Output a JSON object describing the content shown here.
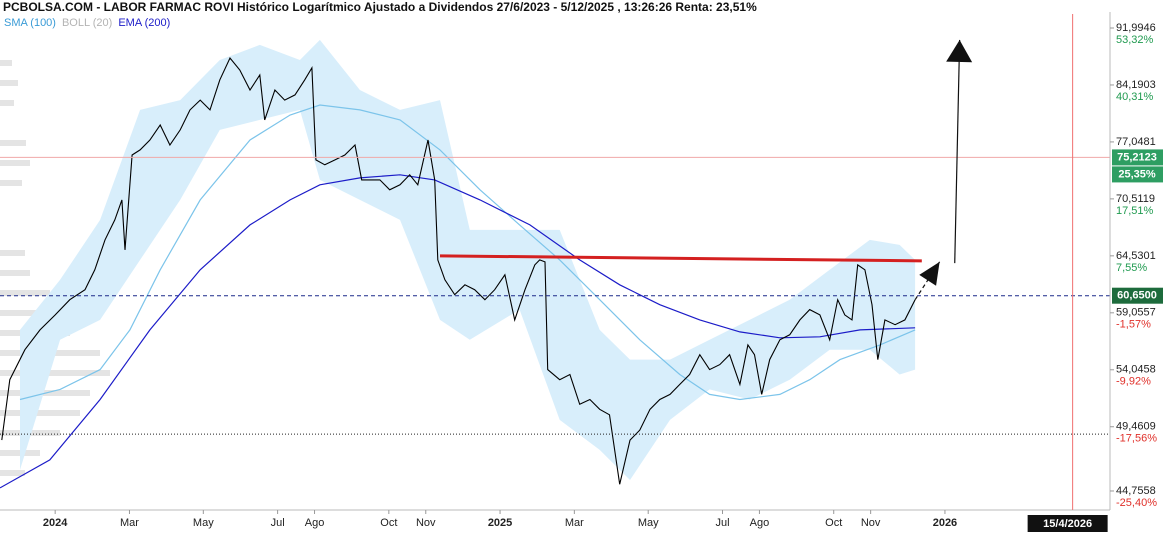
{
  "chart_data": {
    "type": "line",
    "log": true,
    "grid": false,
    "title": "PCBOLSA.COM - LABOR FARMAC ROVI Histórico Logarítmico Ajustado a Dividendos 27/6/2023 - 5/12/2025 , 13:26:26 Renta: 23,51%",
    "xlim": [
      2023.876,
      2026.371
    ],
    "ylim": [
      43.45,
      94.02
    ],
    "xticks": [
      {
        "value": 2024.0,
        "label": "2024"
      },
      {
        "value": 2024.167,
        "label": "Mar"
      },
      {
        "value": 2024.333,
        "label": "May"
      },
      {
        "value": 2024.5,
        "label": "Jul"
      },
      {
        "value": 2024.583,
        "label": "Ago"
      },
      {
        "value": 2024.75,
        "label": "Oct"
      },
      {
        "value": 2024.833,
        "label": "Nov"
      },
      {
        "value": 2025.0,
        "label": "2025"
      },
      {
        "value": 2025.167,
        "label": "Mar"
      },
      {
        "value": 2025.333,
        "label": "May"
      },
      {
        "value": 2025.5,
        "label": "Jul"
      },
      {
        "value": 2025.583,
        "label": "Ago"
      },
      {
        "value": 2025.75,
        "label": "Oct"
      },
      {
        "value": 2025.833,
        "label": "Nov"
      },
      {
        "value": 2026.0,
        "label": "2026"
      }
    ],
    "yticks": [
      {
        "value": 91.9946,
        "label": "91,9946"
      },
      {
        "value": 84.1903,
        "label": "84,1903"
      },
      {
        "value": 77.0481,
        "label": "77,0481"
      },
      {
        "value": 70.5119,
        "label": "70,5119"
      },
      {
        "value": 64.5301,
        "label": "64,5301"
      },
      {
        "value": 59.0557,
        "label": "59,0557"
      },
      {
        "value": 54.0458,
        "label": "54,0458"
      },
      {
        "value": 49.4609,
        "label": "49,4609"
      },
      {
        "value": 44.7558,
        "label": "44,7558"
      }
    ],
    "ytick_percent": [
      {
        "value": 91.9946,
        "label": "53,32%",
        "color": "#1f9a4f"
      },
      {
        "value": 84.1903,
        "label": "40,31%",
        "color": "#1f9a4f"
      },
      {
        "value": 70.5119,
        "label": "17,51%",
        "color": "#1f9a4f"
      },
      {
        "value": 64.5301,
        "label": "7,55%",
        "color": "#1f9a4f"
      },
      {
        "value": 59.0557,
        "label": "-1,57%",
        "color": "#e0302a"
      },
      {
        "value": 54.0458,
        "label": "-9,92%",
        "color": "#e0302a"
      },
      {
        "value": 49.4609,
        "label": "-17,56%",
        "color": "#e0302a"
      },
      {
        "value": 44.7558,
        "label": "-25,40%",
        "color": "#e0302a"
      }
    ],
    "price": {
      "color": "#000000",
      "x": [
        2023.88,
        2023.898,
        2023.932,
        2023.966,
        2024.0,
        2024.033,
        2024.067,
        2024.089,
        2024.112,
        2024.134,
        2024.15,
        2024.157,
        2024.173,
        2024.191,
        2024.213,
        2024.236,
        2024.258,
        2024.281,
        2024.303,
        2024.326,
        2024.348,
        2024.37,
        2024.393,
        2024.415,
        2024.438,
        2024.46,
        2024.471,
        2024.494,
        2024.516,
        2024.539,
        2024.561,
        2024.577,
        2024.586,
        2024.606,
        2024.629,
        2024.651,
        2024.674,
        2024.689,
        2024.712,
        2024.73,
        2024.752,
        2024.775,
        2024.797,
        2024.815,
        2024.838,
        2024.853,
        2024.86,
        2024.876,
        2024.898,
        2024.921,
        2024.943,
        2024.966,
        2024.988,
        2025.011,
        2025.033,
        2025.056,
        2025.078,
        2025.089,
        2025.101,
        2025.107,
        2025.134,
        2025.157,
        2025.179,
        2025.202,
        2025.224,
        2025.246,
        2025.269,
        2025.292,
        2025.314,
        2025.337,
        2025.359,
        2025.382,
        2025.404,
        2025.426,
        2025.449,
        2025.471,
        2025.494,
        2025.516,
        2025.539,
        2025.557,
        2025.572,
        2025.588,
        2025.606,
        2025.629,
        2025.651,
        2025.674,
        2025.696,
        2025.719,
        2025.741,
        2025.759,
        2025.775,
        2025.791,
        2025.804,
        2025.82,
        2025.836,
        2025.849,
        2025.865,
        2025.888,
        2025.91,
        2025.933
      ],
      "values": [
        48.44,
        53.22,
        55.76,
        57.51,
        58.86,
        60.27,
        61.22,
        63.14,
        66.15,
        68.24,
        70.4,
        65.13,
        75.5,
        76.1,
        77.28,
        79.11,
        76.68,
        78.5,
        80.98,
        82.23,
        80.98,
        84.85,
        87.8,
        86.17,
        83.53,
        85.51,
        79.74,
        83.53,
        82.23,
        82.9,
        84.85,
        86.45,
        74.92,
        74.35,
        74.92,
        75.5,
        76.68,
        72.63,
        72.63,
        72.63,
        71.52,
        72.07,
        73.2,
        72.07,
        77.28,
        72.63,
        64.12,
        62.17,
        60.74,
        61.69,
        61.22,
        60.27,
        61.22,
        62.65,
        58.41,
        61.22,
        63.63,
        64.12,
        63.93,
        54.06,
        53.22,
        53.65,
        51.22,
        51.6,
        50.82,
        50.39,
        45.22,
        48.44,
        49.2,
        50.82,
        51.6,
        52.01,
        52.83,
        53.65,
        55.33,
        54.06,
        54.48,
        55.33,
        52.83,
        56.18,
        55.33,
        52.01,
        54.91,
        56.63,
        57.07,
        58.41,
        59.35,
        58.86,
        56.63,
        60.27,
        58.86,
        58.41,
        63.63,
        63.14,
        59.81,
        54.91,
        58.41,
        57.97,
        58.41,
        60.27
      ]
    },
    "series": [
      {
        "name": "SMA (100)",
        "color": "#7cc4ea",
        "label_color": "#3a9bd6",
        "x": [
          2023.921,
          2024.011,
          2024.101,
          2024.168,
          2024.236,
          2024.326,
          2024.438,
          2024.528,
          2024.595,
          2024.685,
          2024.775,
          2024.865,
          2024.955,
          2025.044,
          2025.134,
          2025.224,
          2025.314,
          2025.404,
          2025.471,
          2025.539,
          2025.629,
          2025.696,
          2025.764,
          2025.854,
          2025.933
        ],
        "values": [
          51.6,
          52.42,
          54.06,
          57.51,
          63.14,
          70.4,
          77.28,
          80.35,
          81.61,
          80.98,
          79.74,
          76.1,
          71.52,
          67.71,
          64.12,
          60.27,
          56.63,
          53.65,
          52.01,
          51.6,
          52.01,
          53.22,
          54.91,
          56.18,
          57.51
        ]
      },
      {
        "name": "BOLL (20)",
        "color": "#d8eefb",
        "label_color": "#b4b4b4",
        "x": [
          2023.921,
          2024.011,
          2024.101,
          2024.191,
          2024.281,
          2024.37,
          2024.46,
          2024.55,
          2024.595,
          2024.685,
          2024.775,
          2024.865,
          2024.932,
          2025.044,
          2025.134,
          2025.224,
          2025.292,
          2025.382,
          2025.471,
          2025.561,
          2025.651,
          2025.741,
          2025.831,
          2025.898,
          2025.933
        ],
        "upper": [
          57.51,
          62.17,
          68.24,
          80.98,
          82.23,
          87.53,
          89.6,
          87.53,
          90.3,
          83.53,
          80.98,
          82.23,
          67.19,
          67.19,
          67.19,
          57.51,
          54.91,
          54.91,
          56.63,
          58.41,
          60.27,
          63.14,
          66.15,
          65.64,
          64.12
        ],
        "lower": [
          46.25,
          56.63,
          58.41,
          64.12,
          70.4,
          78.5,
          79.74,
          80.98,
          72.63,
          70.4,
          68.24,
          58.41,
          56.63,
          59.35,
          49.99,
          47.71,
          45.53,
          49.99,
          52.42,
          51.6,
          53.22,
          55.76,
          55.76,
          53.65,
          54.06
        ]
      },
      {
        "name": "EMA (200)",
        "color": "#1c1cc8",
        "label_color": "#1c1cc8",
        "x": [
          2023.876,
          2023.988,
          2024.101,
          2024.213,
          2024.326,
          2024.438,
          2024.528,
          2024.595,
          2024.685,
          2024.775,
          2024.853,
          2024.955,
          2025.067,
          2025.179,
          2025.269,
          2025.359,
          2025.449,
          2025.539,
          2025.629,
          2025.719,
          2025.809,
          2025.933
        ],
        "values": [
          44.97,
          46.97,
          51.6,
          57.51,
          63.14,
          67.71,
          70.4,
          72.07,
          72.85,
          73.2,
          72.63,
          70.4,
          67.71,
          64.12,
          61.69,
          59.81,
          58.41,
          57.33,
          56.8,
          56.89,
          57.51,
          57.69
        ]
      }
    ],
    "hlines": [
      {
        "value": 75.2123,
        "color": "#f0a8a8",
        "style": "solid",
        "label": "75,2123",
        "sublabel": "25,35%",
        "box": "#2e9e62"
      },
      {
        "value": 60.65,
        "color": "#1c2a8a",
        "style": "dashed",
        "label": "60,6500",
        "box": "#1d6b3c"
      },
      {
        "value": 48.9,
        "color": "#222222",
        "style": "dotted"
      }
    ],
    "cursor": {
      "x": 2026.287,
      "label": "15/4/2026",
      "color": "#f07070"
    },
    "trendlines": [
      {
        "color": "#d42020",
        "width": 3,
        "dash": false,
        "arrow": false,
        "x": [
          2024.865,
          2025.948
        ],
        "y": [
          64.53,
          64.03
        ]
      },
      {
        "color": "#111111",
        "width": 1.2,
        "dash": true,
        "arrow": true,
        "x": [
          2025.933,
          2025.988
        ],
        "y": [
          60.27,
          63.93
        ]
      },
      {
        "color": "#111111",
        "width": 1.2,
        "dash": false,
        "arrow": true,
        "x": [
          2026.022,
          2026.033
        ],
        "y": [
          63.8,
          90.3
        ]
      }
    ]
  }
}
